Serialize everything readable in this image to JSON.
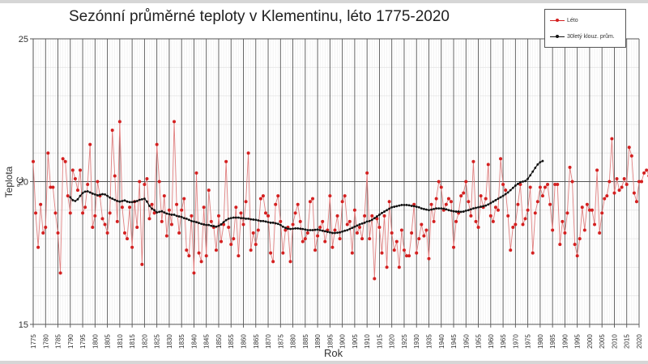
{
  "chart_data": {
    "type": "line",
    "title": "Sezónní průměrné teploty v Klementinu, léto 1775-2020",
    "xlabel": "Rok",
    "ylabel": "Teplota °C",
    "ylim": [
      15,
      25
    ],
    "xlim": [
      1775,
      2020
    ],
    "y_ticks": [
      15,
      20,
      25
    ],
    "x_ticks": [
      1775,
      1780,
      1785,
      1790,
      1795,
      1800,
      1805,
      1810,
      1815,
      1820,
      1825,
      1830,
      1835,
      1840,
      1845,
      1850,
      1855,
      1860,
      1865,
      1870,
      1875,
      1880,
      1885,
      1890,
      1895,
      1900,
      1905,
      1910,
      1915,
      1920,
      1925,
      1930,
      1935,
      1940,
      1945,
      1950,
      1955,
      1960,
      1965,
      1970,
      1975,
      1980,
      1985,
      1990,
      1995,
      2000,
      2005,
      2010,
      2015,
      2020
    ],
    "grid": true,
    "legend_position": "top-right",
    "series": [
      {
        "name": "Léto",
        "color": "#d42020",
        "x_start": 1775,
        "values": [
          20.7,
          18.9,
          17.7,
          19.2,
          18.2,
          18.4,
          21.0,
          19.8,
          19.8,
          18.9,
          18.2,
          16.8,
          20.8,
          20.7,
          19.5,
          18.9,
          20.4,
          20.1,
          19.7,
          20.4,
          18.9,
          19.1,
          19.9,
          21.3,
          18.4,
          18.8,
          20.0,
          19.5,
          18.7,
          18.5,
          18.2,
          18.9,
          21.8,
          20.2,
          18.6,
          22.1,
          19.1,
          18.2,
          18.0,
          19.1,
          17.7,
          19.3,
          18.4,
          20.0,
          17.1,
          19.9,
          20.1,
          18.7,
          19.2,
          18.9,
          21.3,
          20.0,
          18.6,
          19.5,
          18.1,
          19.0,
          18.5,
          22.1,
          19.2,
          18.2,
          19.0,
          19.4,
          17.6,
          17.4,
          18.8,
          16.8,
          20.3,
          17.5,
          17.2,
          19.1,
          17.4,
          19.7,
          18.6,
          18.4,
          17.6,
          18.8,
          17.9,
          18.5,
          20.7,
          18.4,
          17.8,
          18.0,
          19.1,
          17.4,
          18.9,
          18.5,
          19.3,
          21.0,
          17.6,
          18.2,
          17.8,
          18.3,
          19.4,
          19.5,
          18.9,
          18.8,
          17.5,
          17.2,
          19.2,
          19.5,
          18.6,
          17.5,
          18.3,
          18.4,
          17.2,
          18.5,
          18.9,
          19.2,
          18.6,
          17.9,
          18.0,
          18.2,
          19.3,
          19.4,
          17.6,
          18.1,
          18.4,
          18.6,
          17.9,
          18.3,
          19.5,
          17.7,
          18.3,
          18.8,
          18.0,
          19.3,
          19.5,
          18.5,
          18.6,
          17.5,
          19.0,
          18.2,
          18.4,
          18.0,
          18.8,
          20.3,
          18.0,
          18.8,
          16.6,
          18.7,
          18.4,
          17.5,
          18.8,
          17.0,
          19.3,
          18.2,
          17.6,
          17.9,
          17.0,
          18.3,
          17.6,
          17.4,
          17.4,
          18.2,
          19.2,
          17.5,
          18.0,
          18.5,
          18.1,
          18.3,
          17.3,
          19.2,
          18.6,
          19.4,
          20.0,
          19.8,
          19.0,
          19.2,
          19.4,
          19.3,
          17.7,
          18.6,
          18.9,
          19.5,
          19.6,
          20.0,
          19.3,
          18.8,
          20.7,
          18.6,
          18.4,
          19.5,
          19.1,
          19.4,
          20.6,
          18.8,
          18.6,
          19.1,
          19.0,
          20.8,
          19.9,
          19.7,
          18.8,
          17.6,
          18.4,
          18.5,
          19.2,
          19.9,
          18.5,
          18.7,
          19.0,
          19.8,
          17.5,
          18.9,
          19.3,
          19.8,
          19.5,
          19.8,
          19.9,
          19.2,
          18.3,
          19.9,
          19.9,
          17.8,
          18.6,
          18.2,
          18.9,
          20.5,
          20.0,
          17.8,
          17.4,
          18.0,
          19.1,
          18.3,
          19.2,
          19.0,
          19.0,
          18.5,
          20.4,
          18.2,
          18.9,
          19.4,
          19.5,
          20.0,
          21.5,
          19.6,
          20.1,
          19.7,
          19.8,
          20.1,
          19.9,
          21.2,
          20.9,
          19.6,
          19.3,
          20.0,
          20.0,
          20.3,
          20.4,
          20.2,
          22.3,
          21.1,
          20.5,
          21.5,
          22.9,
          21.1,
          20.4,
          21.9,
          23.1,
          21.0
        ]
      },
      {
        "name": "30letý klouz. prům.",
        "color": "#111111",
        "x_start": 1790,
        "values": [
          19.45,
          19.35,
          19.32,
          19.38,
          19.5,
          19.6,
          19.65,
          19.66,
          19.62,
          19.58,
          19.55,
          19.52,
          19.54,
          19.56,
          19.55,
          19.5,
          19.44,
          19.4,
          19.36,
          19.32,
          19.3,
          19.32,
          19.34,
          19.3,
          19.28,
          19.28,
          19.3,
          19.32,
          19.36,
          19.38,
          19.4,
          19.3,
          19.15,
          19.05,
          19.0,
          18.92,
          18.94,
          18.96,
          18.92,
          18.88,
          18.86,
          18.84,
          18.84,
          18.8,
          18.78,
          18.76,
          18.72,
          18.7,
          18.66,
          18.62,
          18.6,
          18.58,
          18.55,
          18.52,
          18.5,
          18.48,
          18.48,
          18.45,
          18.44,
          18.42,
          18.45,
          18.5,
          18.58,
          18.65,
          18.7,
          18.72,
          18.74,
          18.74,
          18.74,
          18.72,
          18.72,
          18.7,
          18.7,
          18.68,
          18.67,
          18.66,
          18.64,
          18.62,
          18.62,
          18.6,
          18.58,
          18.56,
          18.56,
          18.54,
          18.52,
          18.48,
          18.42,
          18.38,
          18.35,
          18.34,
          18.35,
          18.36,
          18.36,
          18.35,
          18.34,
          18.32,
          18.3,
          18.3,
          18.3,
          18.31,
          18.32,
          18.3,
          18.28,
          18.26,
          18.24,
          18.22,
          18.2,
          18.2,
          18.21,
          18.22,
          18.25,
          18.28,
          18.3,
          18.34,
          18.38,
          18.42,
          18.46,
          18.5,
          18.53,
          18.56,
          18.6,
          18.62,
          18.66,
          18.72,
          18.78,
          18.84,
          18.9,
          18.95,
          19.0,
          19.05,
          19.1,
          19.12,
          19.14,
          19.16,
          19.18,
          19.18,
          19.18,
          19.17,
          19.15,
          19.14,
          19.12,
          19.1,
          19.06,
          19.04,
          19.02,
          19.0,
          19.02,
          19.04,
          19.06,
          19.06,
          19.06,
          19.05,
          19.03,
          19.0,
          18.98,
          18.96,
          18.95,
          18.95,
          18.94,
          18.95,
          18.98,
          19.0,
          19.03,
          19.06,
          19.08,
          19.1,
          19.12,
          19.14,
          19.16,
          19.2,
          19.25,
          19.3,
          19.35,
          19.4,
          19.45,
          19.5,
          19.56,
          19.62,
          19.7,
          19.78,
          19.86,
          19.92,
          19.98,
          20.0,
          20.02,
          20.1,
          20.22,
          20.35,
          20.48,
          20.6,
          20.68,
          20.72
        ]
      }
    ]
  },
  "legend": {
    "items": [
      {
        "label": "Léto",
        "color": "#d42020"
      },
      {
        "label": "30letý klouz. prům.",
        "color": "#111111"
      }
    ]
  }
}
